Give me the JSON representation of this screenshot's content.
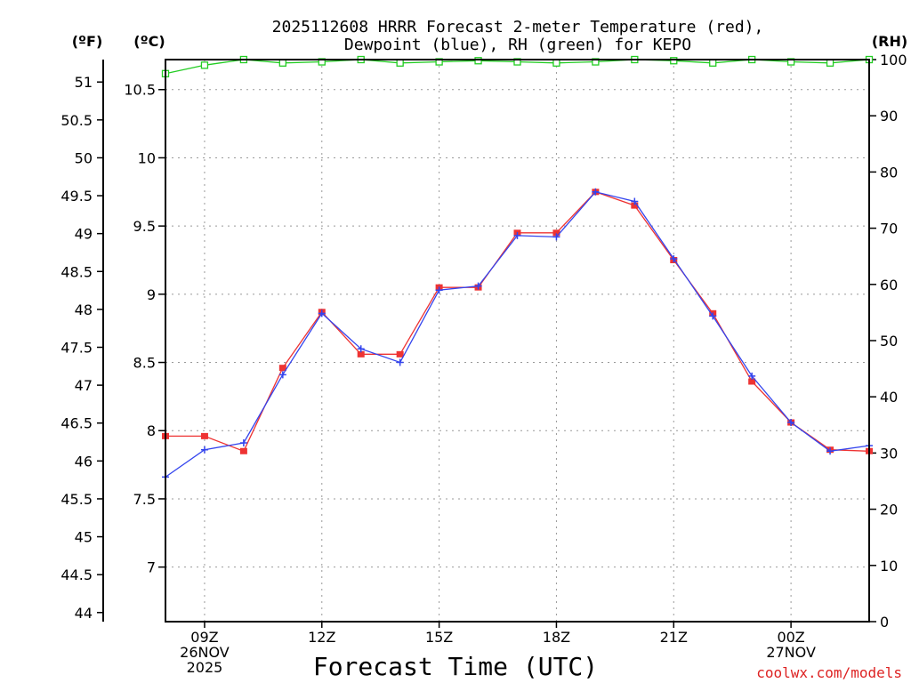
{
  "chart_data": {
    "type": "line",
    "title": [
      "2025112608 HRRR Forecast 2-meter Temperature (red),",
      "Dewpoint (blue), RH (green) for KEPO"
    ],
    "xlabel": "Forecast Time (UTC)",
    "credit": "coolwx.com/models",
    "units": {
      "fahrenheit": "(ºF)",
      "celsius": "(ºC)",
      "rh": "(RH)"
    },
    "x_hours": [
      8,
      9,
      10,
      11,
      12,
      13,
      14,
      15,
      16,
      17,
      18,
      19,
      20,
      21,
      22,
      23,
      24,
      25,
      26
    ],
    "x_range": [
      8,
      26
    ],
    "x_ticks": [
      {
        "x": 9,
        "lines": [
          "09Z",
          "26NOV",
          "2025"
        ]
      },
      {
        "x": 12,
        "lines": [
          "12Z"
        ]
      },
      {
        "x": 15,
        "lines": [
          "15Z"
        ]
      },
      {
        "x": 18,
        "lines": [
          "18Z"
        ]
      },
      {
        "x": 21,
        "lines": [
          "21Z"
        ]
      },
      {
        "x": 24,
        "lines": [
          "00Z",
          "27NOV"
        ]
      }
    ],
    "celsius_axis": {
      "range": [
        6.6,
        10.72
      ],
      "ticks": [
        7,
        7.5,
        8,
        8.5,
        9,
        9.5,
        10,
        10.5
      ]
    },
    "fahrenheit_axis": {
      "range": [
        43.88,
        51.296
      ],
      "ticks": [
        44,
        44.5,
        45,
        45.5,
        46,
        46.5,
        47,
        47.5,
        48,
        48.5,
        49,
        49.5,
        50,
        50.5,
        51
      ]
    },
    "rh_axis": {
      "range": [
        0,
        100
      ],
      "ticks": [
        0,
        10,
        20,
        30,
        40,
        50,
        60,
        70,
        80,
        90,
        100
      ]
    },
    "grid": true,
    "series": [
      {
        "name": "Temperature",
        "color": "#ee3333",
        "marker": "square-filled",
        "values": [
          7.96,
          7.96,
          7.85,
          8.46,
          8.87,
          8.56,
          8.56,
          9.05,
          9.05,
          9.45,
          9.45,
          9.75,
          9.65,
          9.25,
          8.86,
          8.36,
          8.06,
          7.86,
          7.85
        ]
      },
      {
        "name": "Dewpoint",
        "color": "#3344ee",
        "marker": "plus",
        "values": [
          7.66,
          7.86,
          7.91,
          8.41,
          8.86,
          8.6,
          8.5,
          9.03,
          9.06,
          9.43,
          9.42,
          9.75,
          9.68,
          9.26,
          8.84,
          8.4,
          8.06,
          7.85,
          7.89
        ]
      },
      {
        "name": "RH",
        "color": "#22cc22",
        "marker": "square-open",
        "values": [
          97.5,
          99,
          100,
          99.4,
          99.6,
          100,
          99.4,
          99.6,
          99.8,
          99.6,
          99.4,
          99.6,
          100,
          99.8,
          99.4,
          100,
          99.6,
          99.4,
          100
        ]
      }
    ]
  }
}
